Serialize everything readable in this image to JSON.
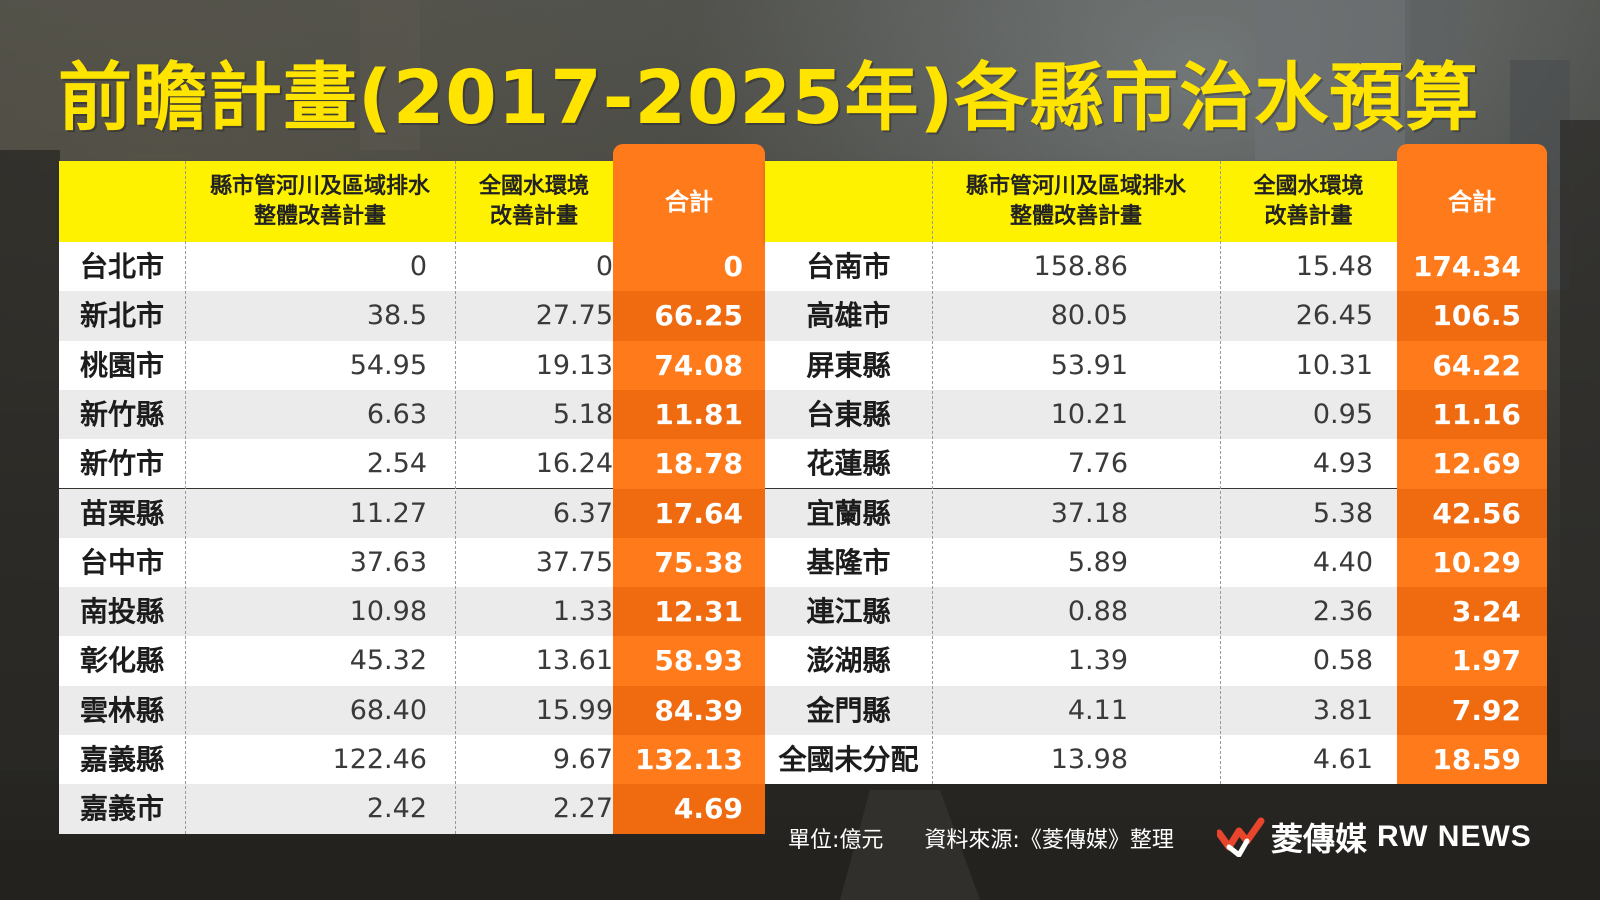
{
  "title": "前瞻計畫(2017-2025年)各縣市治水預算",
  "headers": {
    "name": "",
    "col1": "縣市管河川及區域排水\n整體改善計畫",
    "col2": "全國水環境\n改善計畫",
    "total": "合計"
  },
  "left_table": {
    "rows": [
      {
        "name": "台北市",
        "a": "0",
        "b": "0",
        "total": "0"
      },
      {
        "name": "新北市",
        "a": "38.5",
        "b": "27.75",
        "total": "66.25"
      },
      {
        "name": "桃園市",
        "a": "54.95",
        "b": "19.13",
        "total": "74.08"
      },
      {
        "name": "新竹縣",
        "a": "6.63",
        "b": "5.18",
        "total": "11.81"
      },
      {
        "name": "新竹市",
        "a": "2.54",
        "b": "16.24",
        "total": "18.78"
      },
      {
        "name": "苗栗縣",
        "a": "11.27",
        "b": "6.37",
        "total": "17.64"
      },
      {
        "name": "台中市",
        "a": "37.63",
        "b": "37.75",
        "total": "75.38"
      },
      {
        "name": "南投縣",
        "a": "10.98",
        "b": "1.33",
        "total": "12.31"
      },
      {
        "name": "彰化縣",
        "a": "45.32",
        "b": "13.61",
        "total": "58.93"
      },
      {
        "name": "雲林縣",
        "a": "68.40",
        "b": "15.99",
        "total": "84.39"
      },
      {
        "name": "嘉義縣",
        "a": "122.46",
        "b": "9.67",
        "total": "132.13"
      },
      {
        "name": "嘉義市",
        "a": "2.42",
        "b": "2.27",
        "total": "4.69"
      }
    ]
  },
  "right_table": {
    "rows": [
      {
        "name": "台南市",
        "a": "158.86",
        "b": "15.48",
        "total": "174.34"
      },
      {
        "name": "高雄市",
        "a": "80.05",
        "b": "26.45",
        "total": "106.5"
      },
      {
        "name": "屏東縣",
        "a": "53.91",
        "b": "10.31",
        "total": "64.22"
      },
      {
        "name": "台東縣",
        "a": "10.21",
        "b": "0.95",
        "total": "11.16"
      },
      {
        "name": "花蓮縣",
        "a": "7.76",
        "b": "4.93",
        "total": "12.69"
      },
      {
        "name": "宜蘭縣",
        "a": "37.18",
        "b": "5.38",
        "total": "42.56"
      },
      {
        "name": "基隆市",
        "a": "5.89",
        "b": "4.40",
        "total": "10.29"
      },
      {
        "name": "連江縣",
        "a": "0.88",
        "b": "2.36",
        "total": "3.24"
      },
      {
        "name": "澎湖縣",
        "a": "1.39",
        "b": "0.58",
        "total": "1.97"
      },
      {
        "name": "金門縣",
        "a": "4.11",
        "b": "3.81",
        "total": "7.92"
      },
      {
        "name": "全國未分配",
        "a": "13.98",
        "b": "4.61",
        "total": "18.59"
      }
    ]
  },
  "footer": {
    "unit": "單位:億元",
    "source": "資料來源:《菱傳媒》整理"
  },
  "logo": {
    "name_cn": "菱傳媒",
    "name_en": "RW NEWS"
  },
  "colors": {
    "title": "#ffe400",
    "header_bg": "#fff200",
    "total_col": "#ff7a1a",
    "row_white": "#ffffff",
    "row_gray": "#ebebeb",
    "total_row_dark": "#f06a10",
    "total_row_light": "#ff7a1a"
  }
}
